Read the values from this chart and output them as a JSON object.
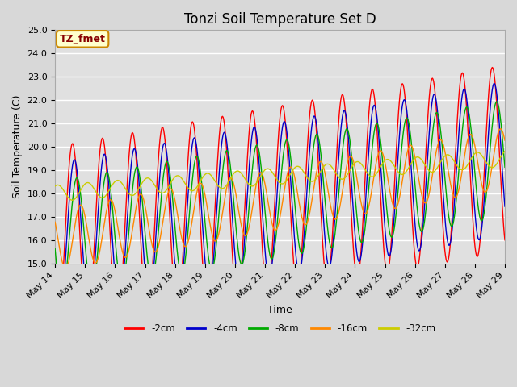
{
  "title": "Tonzi Soil Temperature Set D",
  "xlabel": "Time",
  "ylabel": "Soil Temperature (C)",
  "ylim": [
    15.0,
    25.0
  ],
  "yticks": [
    15.0,
    16.0,
    17.0,
    18.0,
    19.0,
    20.0,
    21.0,
    22.0,
    23.0,
    24.0,
    25.0
  ],
  "x_tick_labels": [
    "May 14",
    "May 15",
    "May 16",
    "May 17",
    "May 18",
    "May 19",
    "May 20",
    "May 21",
    "May 22",
    "May 23",
    "May 24",
    "May 25",
    "May 26",
    "May 27",
    "May 28",
    "May 29"
  ],
  "colors": {
    "-2cm": "#ff0000",
    "-4cm": "#0000cc",
    "-8cm": "#00aa00",
    "-16cm": "#ff8800",
    "-32cm": "#cccc00"
  },
  "legend_labels": [
    "-2cm",
    "-4cm",
    "-8cm",
    "-16cm",
    "-32cm"
  ],
  "annotation_text": "TZ_fmet",
  "annotation_bg": "#ffffcc",
  "annotation_border": "#cc8800",
  "background_color": "#e0e0e0",
  "grid_color": "#ffffff",
  "title_fontsize": 12,
  "axis_label_fontsize": 9,
  "tick_fontsize": 8
}
